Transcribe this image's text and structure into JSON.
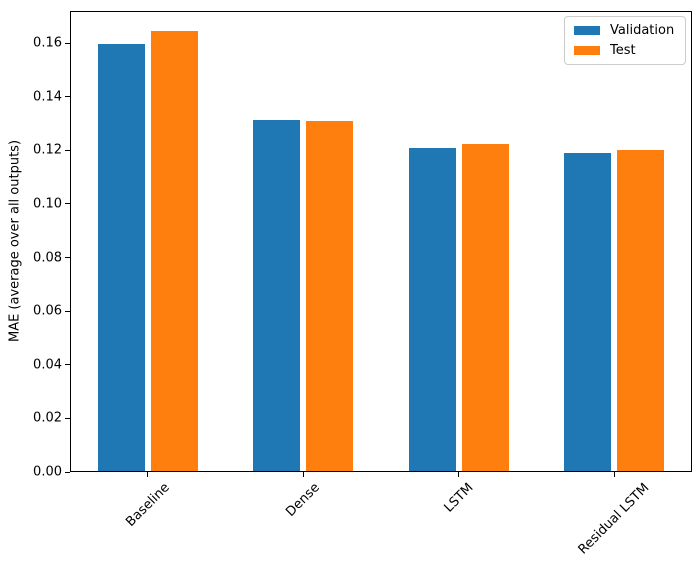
{
  "chart_data": {
    "type": "bar",
    "title": "",
    "xlabel": "",
    "ylabel": "MAE (average over all outputs)",
    "categories": [
      "Baseline",
      "Dense",
      "LSTM",
      "Residual LSTM"
    ],
    "series": [
      {
        "name": "Validation",
        "color": "#1f77b4",
        "values": [
          0.1594,
          0.1308,
          0.1204,
          0.1185
        ]
      },
      {
        "name": "Test",
        "color": "#ff7f0e",
        "values": [
          0.1641,
          0.1305,
          0.1219,
          0.1198
        ]
      }
    ],
    "ylim": [
      0,
      0.172
    ],
    "yticks": [
      "0.00",
      "0.02",
      "0.04",
      "0.06",
      "0.08",
      "0.10",
      "0.12",
      "0.14",
      "0.16"
    ],
    "grid": false,
    "legend_position": "upper right",
    "x_tick_rotation": 45,
    "bar_width": 0.3,
    "bar_offsets": [
      -0.17,
      0.17
    ],
    "axes_color": "#000000",
    "background_color": "#ffffff",
    "legend_border_color": "#cccccc"
  }
}
